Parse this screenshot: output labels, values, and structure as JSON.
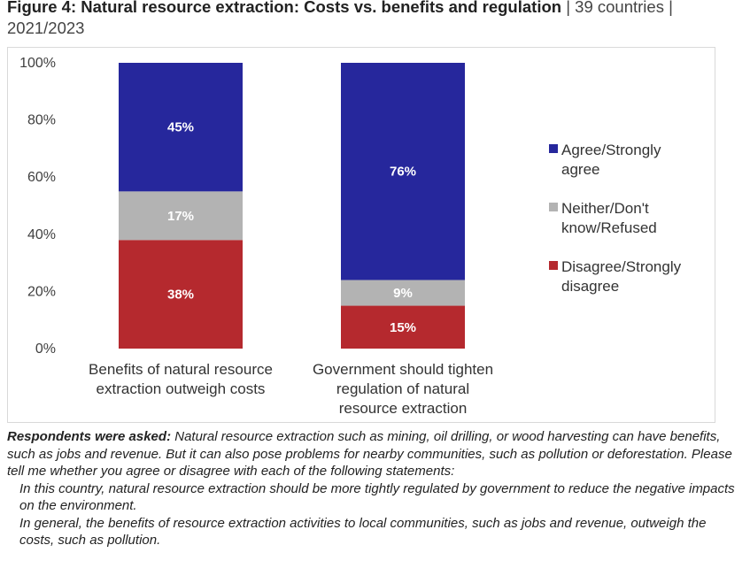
{
  "header": {
    "title_bold": "Figure 4: Natural resource extraction: Costs vs. benefits and regulation",
    "title_rest": " | 39 countries | 2021/2023"
  },
  "chart_data": {
    "type": "bar",
    "stacked": true,
    "categories": [
      [
        "Benefits of natural resource",
        "extraction outweigh costs"
      ],
      [
        "Government should tighten",
        "regulation of natural",
        "resource extraction"
      ]
    ],
    "series": [
      {
        "name": "Disagree/Strongly disagree",
        "legend_lines": [
          "Disagree/Strongly",
          "disagree"
        ],
        "color": "#b5292e",
        "values": [
          38,
          15
        ]
      },
      {
        "name": "Neither/Don't know/Refused",
        "legend_lines": [
          "Neither/Don't",
          "know/Refused"
        ],
        "color": "#b3b3b3",
        "values": [
          17,
          9
        ]
      },
      {
        "name": "Agree/Strongly agree",
        "legend_lines": [
          "Agree/Strongly",
          "agree"
        ],
        "color": "#26279c",
        "values": [
          45,
          76
        ]
      }
    ],
    "ylim": [
      0,
      100
    ],
    "yticks": [
      "0%",
      "20%",
      "40%",
      "60%",
      "80%",
      "100%"
    ],
    "legend_position": "right",
    "grid": false
  },
  "notes": {
    "lead": "Respondents were asked:",
    "question": " Natural resource extraction such as mining, oil drilling, or wood harvesting can have benefits, such as jobs and revenue. But it can also pose problems for nearby communities, such as pollution or deforestation. Please tell me whether you agree or disagree with each of the following statements:",
    "statement_1": "In this country, natural resource extraction should be more tightly regulated by government to reduce the negative impacts on the environment.",
    "statement_2": "In general, the benefits of resource extraction activities to local communities, such as jobs and revenue, outweigh the costs, such as pollution."
  }
}
